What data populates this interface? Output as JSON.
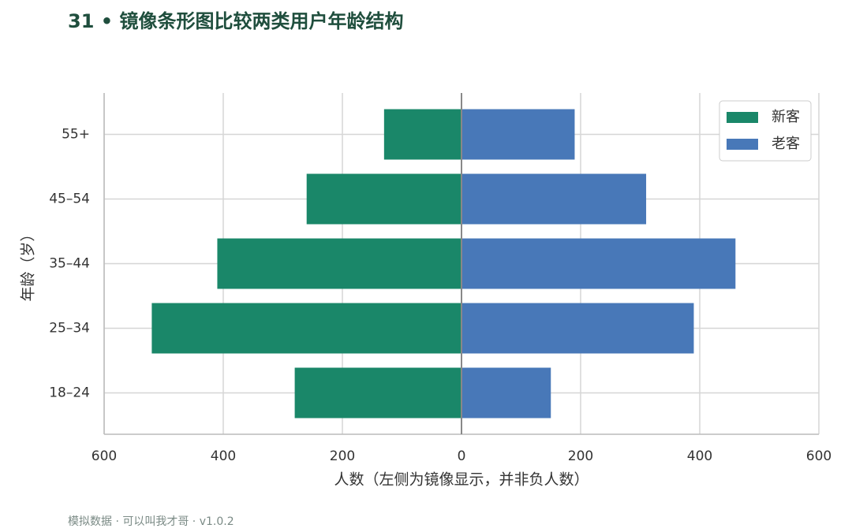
{
  "chart_data": {
    "type": "mirror-bar",
    "title": "31 • 镜像条形图比较两类用户年龄结构",
    "x_label": "人数（左侧为镜像显示，并非负人数）",
    "y_label": "年龄（岁）",
    "footer": "模拟数据 · 可以叫我才哥 · v1.0.2",
    "categories": [
      "18–24",
      "25–34",
      "35–44",
      "45–54",
      "55+"
    ],
    "series": [
      {
        "name": "新客",
        "color": "#1a8769",
        "side": "left",
        "values": [
          280,
          520,
          410,
          260,
          130
        ]
      },
      {
        "name": "老客",
        "color": "#4878b8",
        "side": "right",
        "values": [
          150,
          390,
          460,
          310,
          190
        ]
      }
    ],
    "xlim": [
      -600,
      600
    ],
    "xticks": [
      {
        "value": -600,
        "label": "600"
      },
      {
        "value": -400,
        "label": "400"
      },
      {
        "value": -200,
        "label": "200"
      },
      0,
      200,
      400,
      600
    ],
    "grid": true,
    "legend": "upper right"
  }
}
